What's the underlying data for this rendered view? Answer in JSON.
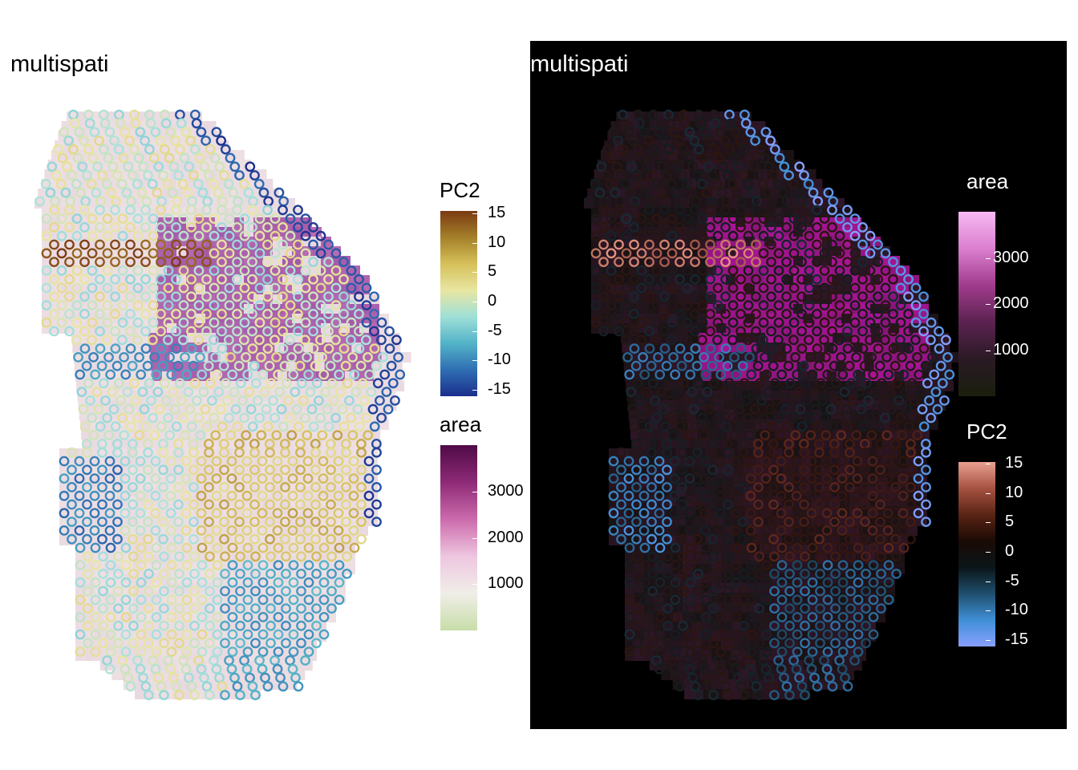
{
  "chart_data": [
    {
      "type": "scatter",
      "title": "multispati",
      "theme": "light",
      "description_layers": [
        "tissue image colored by area",
        "spots colored by PC2"
      ],
      "grid": false,
      "axes_visible": false,
      "legends": [
        {
          "title": "PC2",
          "ticks": [
            "15",
            "10",
            "5",
            "0",
            "-5",
            "-10",
            "-15"
          ],
          "values": [
            15,
            10,
            5,
            0,
            -5,
            -10,
            -15
          ],
          "colors": [
            "#1b2e8c",
            "#2f6fb3",
            "#53b3c8",
            "#9fe0d8",
            "#e8e6a2",
            "#d6c05a",
            "#a5802a",
            "#7a3a12"
          ]
        },
        {
          "title": "area",
          "ticks": [
            "3000",
            "2000",
            "1000"
          ],
          "values": [
            3000,
            2000,
            1000
          ],
          "colors": [
            "#c8dda8",
            "#f0eee8",
            "#eec6e0",
            "#cc6bac",
            "#8e2a77",
            "#4f0a46"
          ]
        }
      ]
    },
    {
      "type": "scatter",
      "title": "multispati",
      "theme": "dark",
      "description_layers": [
        "tissue image colored by area",
        "spots colored by PC2"
      ],
      "grid": false,
      "axes_visible": false,
      "legends": [
        {
          "title": "area",
          "ticks": [
            "3000",
            "2000",
            "1000"
          ],
          "values": [
            3000,
            2000,
            1000
          ],
          "colors": [
            "#1a1f0e",
            "#2a1a24",
            "#5b2250",
            "#a03b8c",
            "#db7fcf",
            "#f7b9f3"
          ]
        },
        {
          "title": "PC2",
          "ticks": [
            "15",
            "10",
            "5",
            "0",
            "-5",
            "-10",
            "-15"
          ],
          "values": [
            15,
            10,
            5,
            0,
            -5,
            -10,
            -15
          ],
          "colors": [
            "#8aa0ff",
            "#3f8fd6",
            "#1f4f6e",
            "#0b1518",
            "#1a0a05",
            "#5a2414",
            "#a65242",
            "#e8a090"
          ]
        }
      ]
    }
  ]
}
